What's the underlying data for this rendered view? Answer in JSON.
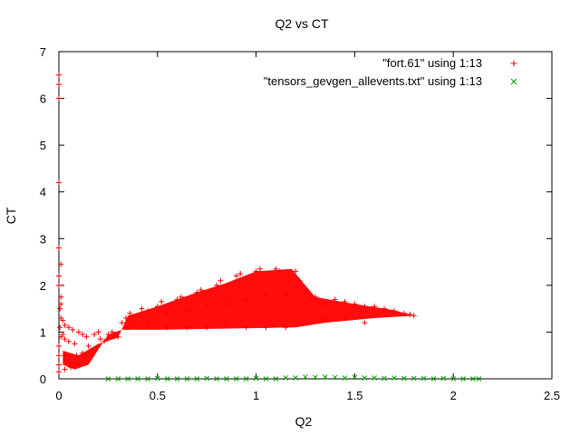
{
  "chart_data": {
    "type": "scatter",
    "title": "Q2 vs CT",
    "xlabel": "Q2",
    "ylabel": "CT",
    "xlim": [
      0,
      2.5
    ],
    "ylim": [
      0,
      7
    ],
    "xticks": [
      "0",
      "0.5",
      "1",
      "1.5",
      "2",
      "2.5"
    ],
    "xtick_values": [
      0,
      0.5,
      1,
      1.5,
      2,
      2.5
    ],
    "yticks": [
      "0",
      "1",
      "2",
      "3",
      "4",
      "5",
      "6",
      "7"
    ],
    "ytick_values": [
      0,
      1,
      2,
      3,
      4,
      5,
      6,
      7
    ],
    "grid": false,
    "legend_position": "top-right",
    "series": [
      {
        "name": "\"fort.61\" using 1:13",
        "color": "#ff0000",
        "marker": "plus",
        "points": [
          [
            0.0,
            6.5
          ],
          [
            0.0,
            6.3
          ],
          [
            0.0,
            6.0
          ],
          [
            0.0,
            4.2
          ],
          [
            0.0,
            2.8
          ],
          [
            0.01,
            2.45
          ],
          [
            0.0,
            2.2
          ],
          [
            0.0,
            2.0
          ],
          [
            0.01,
            1.75
          ],
          [
            0.01,
            1.6
          ],
          [
            0.005,
            1.5
          ],
          [
            0.01,
            1.3
          ],
          [
            0.005,
            1.1
          ],
          [
            0.01,
            0.9
          ],
          [
            0.0,
            0.7
          ],
          [
            0.0,
            0.5
          ],
          [
            0.0,
            0.3
          ],
          [
            0.0,
            0.15
          ],
          [
            0.02,
            1.25
          ],
          [
            0.02,
            0.95
          ],
          [
            0.03,
            1.15
          ],
          [
            0.03,
            0.85
          ],
          [
            0.03,
            0.5
          ],
          [
            0.03,
            0.2
          ],
          [
            0.05,
            1.1
          ],
          [
            0.05,
            0.8
          ],
          [
            0.05,
            0.4
          ],
          [
            0.06,
            0.25
          ],
          [
            0.07,
            1.05
          ],
          [
            0.08,
            0.75
          ],
          [
            0.09,
            0.5
          ],
          [
            0.1,
            1.0
          ],
          [
            0.1,
            0.3
          ],
          [
            0.12,
            0.95
          ],
          [
            0.12,
            0.55
          ],
          [
            0.14,
            0.9
          ],
          [
            0.15,
            0.7
          ],
          [
            0.17,
            0.6
          ],
          [
            0.18,
            0.95
          ],
          [
            0.2,
            1.0
          ],
          [
            0.21,
            0.85
          ],
          [
            0.23,
            0.8
          ],
          [
            0.25,
            0.95
          ],
          [
            0.27,
            1.0
          ],
          [
            0.3,
            0.9
          ],
          [
            0.32,
            1.2
          ],
          [
            0.34,
            1.3
          ],
          [
            0.36,
            1.4
          ],
          [
            0.35,
            1.1
          ],
          [
            0.4,
            1.35
          ],
          [
            0.42,
            1.5
          ],
          [
            0.45,
            1.45
          ],
          [
            0.45,
            1.15
          ],
          [
            0.5,
            1.55
          ],
          [
            0.52,
            1.65
          ],
          [
            0.55,
            1.4
          ],
          [
            0.55,
            1.1
          ],
          [
            0.6,
            1.7
          ],
          [
            0.62,
            1.75
          ],
          [
            0.65,
            1.45
          ],
          [
            0.65,
            1.1
          ],
          [
            0.7,
            1.85
          ],
          [
            0.72,
            1.9
          ],
          [
            0.75,
            1.55
          ],
          [
            0.75,
            1.1
          ],
          [
            0.8,
            2.0
          ],
          [
            0.82,
            2.1
          ],
          [
            0.85,
            1.6
          ],
          [
            0.85,
            1.15
          ],
          [
            0.9,
            2.2
          ],
          [
            0.92,
            2.25
          ],
          [
            0.95,
            1.7
          ],
          [
            0.95,
            1.1
          ],
          [
            1.0,
            2.3
          ],
          [
            1.02,
            2.35
          ],
          [
            1.05,
            1.8
          ],
          [
            1.05,
            1.1
          ],
          [
            1.1,
            2.35
          ],
          [
            1.12,
            2.3
          ],
          [
            1.15,
            1.8
          ],
          [
            1.15,
            1.1
          ],
          [
            1.2,
            2.3
          ],
          [
            1.2,
            1.95
          ],
          [
            1.22,
            2.1
          ],
          [
            1.25,
            1.85
          ],
          [
            1.25,
            1.2
          ],
          [
            1.3,
            1.75
          ],
          [
            1.32,
            1.65
          ],
          [
            1.35,
            1.6
          ],
          [
            1.35,
            1.3
          ],
          [
            1.4,
            1.7
          ],
          [
            1.45,
            1.65
          ],
          [
            1.45,
            1.3
          ],
          [
            1.5,
            1.6
          ],
          [
            1.55,
            1.55
          ],
          [
            1.55,
            1.2
          ],
          [
            1.6,
            1.55
          ],
          [
            1.65,
            1.5
          ],
          [
            1.7,
            1.45
          ],
          [
            1.75,
            1.4
          ],
          [
            1.78,
            1.38
          ],
          [
            1.8,
            1.35
          ]
        ]
      },
      {
        "name": "\"tensors_gevgen_allevents.txt\" using 1:13",
        "color": "#00a000",
        "marker": "x",
        "points": [
          [
            0.25,
            0.0
          ],
          [
            0.3,
            0.0
          ],
          [
            0.35,
            0.0
          ],
          [
            0.4,
            0.0
          ],
          [
            0.45,
            0.0
          ],
          [
            0.5,
            0.01
          ],
          [
            0.55,
            0.0
          ],
          [
            0.6,
            0.0
          ],
          [
            0.65,
            0.0
          ],
          [
            0.7,
            0.0
          ],
          [
            0.75,
            0.01
          ],
          [
            0.8,
            0.0
          ],
          [
            0.85,
            0.0
          ],
          [
            0.9,
            0.0
          ],
          [
            0.95,
            0.0
          ],
          [
            1.0,
            0.01
          ],
          [
            1.05,
            0.0
          ],
          [
            1.1,
            0.0
          ],
          [
            1.15,
            0.02
          ],
          [
            1.2,
            0.02
          ],
          [
            1.25,
            0.04
          ],
          [
            1.3,
            0.03
          ],
          [
            1.35,
            0.04
          ],
          [
            1.4,
            0.03
          ],
          [
            1.45,
            0.02
          ],
          [
            1.5,
            0.03
          ],
          [
            1.55,
            0.02
          ],
          [
            1.6,
            0.02
          ],
          [
            1.65,
            0.01
          ],
          [
            1.7,
            0.02
          ],
          [
            1.75,
            0.01
          ],
          [
            1.8,
            0.01
          ],
          [
            1.85,
            0.01
          ],
          [
            1.9,
            0.0
          ],
          [
            1.95,
            0.01
          ],
          [
            2.0,
            0.0
          ],
          [
            2.05,
            0.0
          ],
          [
            2.1,
            0.0
          ],
          [
            2.13,
            0.0
          ]
        ]
      }
    ]
  }
}
